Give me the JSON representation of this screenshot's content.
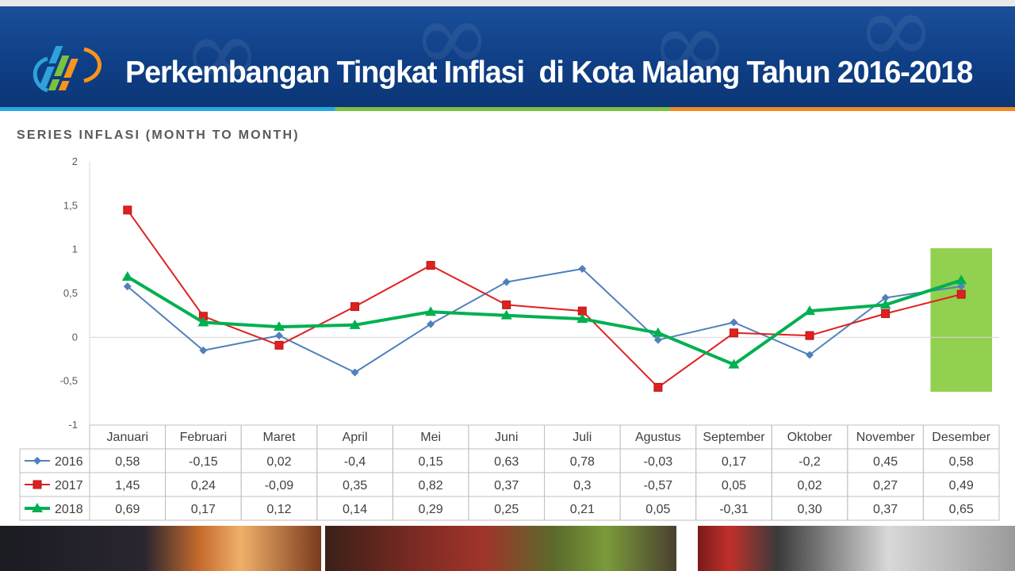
{
  "header": {
    "title": "Perkembangan Tingkat Inflasi  di Kota Malang Tahun 2016-2018",
    "logo_icon": "bps-logo-icon"
  },
  "subtitle": "SERIES INFLASI (MONTH TO MONTH)",
  "chart_data": {
    "type": "line",
    "categories": [
      "Januari",
      "Februari",
      "Maret",
      "April",
      "Mei",
      "Juni",
      "Juli",
      "Agustus",
      "September",
      "Oktober",
      "November",
      "Desember"
    ],
    "ylim": [
      -1,
      2
    ],
    "yticks": [
      "2",
      "1,5",
      "1",
      "0,5",
      "0",
      "-0,5",
      "-1"
    ],
    "grid": "zero-line only",
    "legend": "data table below chart",
    "highlight": {
      "category": "Desember",
      "color": "#92d050"
    },
    "series": [
      {
        "name": "2016",
        "color": "#4f81bd",
        "marker": "diamond",
        "values": [
          0.58,
          -0.15,
          0.02,
          -0.4,
          0.15,
          0.63,
          0.78,
          -0.03,
          0.17,
          -0.2,
          0.45,
          0.58
        ],
        "labels": [
          "0,58",
          "-0,15",
          "0,02",
          "-0,4",
          "0,15",
          "0,63",
          "0,78",
          "-0,03",
          "0,17",
          "-0,2",
          "0,45",
          "0,58"
        ]
      },
      {
        "name": "2017",
        "color": "#e02020",
        "marker": "square",
        "values": [
          1.45,
          0.24,
          -0.09,
          0.35,
          0.82,
          0.37,
          0.3,
          -0.57,
          0.05,
          0.02,
          0.27,
          0.49
        ],
        "labels": [
          "1,45",
          "0,24",
          "-0,09",
          "0,35",
          "0,82",
          "0,37",
          "0,3",
          "-0,57",
          "0,05",
          "0,02",
          "0,27",
          "0,49"
        ]
      },
      {
        "name": "2018",
        "color": "#00b050",
        "marker": "triangle",
        "values": [
          0.69,
          0.17,
          0.12,
          0.14,
          0.29,
          0.25,
          0.21,
          0.05,
          -0.31,
          0.3,
          0.37,
          0.65
        ],
        "labels": [
          "0,69",
          "0,17",
          "0,12",
          "0,14",
          "0,29",
          "0,25",
          "0,21",
          "0,05",
          "-0,31",
          "0,30",
          "0,37",
          "0,65"
        ]
      }
    ]
  }
}
